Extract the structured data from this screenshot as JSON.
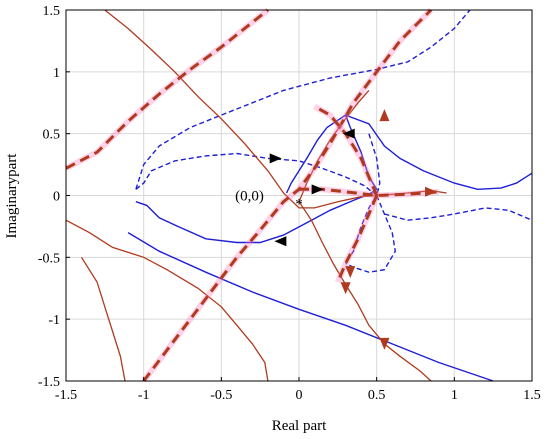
{
  "chart_data": {
    "type": "line",
    "title": "",
    "xlabel": "Real part",
    "ylabel": "Imaginarypart",
    "xlim": [
      -1.5,
      1.5
    ],
    "ylim": [
      -1.5,
      1.5
    ],
    "x_ticks": [
      "-1.5",
      "-1",
      "-0.5",
      "0",
      "0.5",
      "1",
      "1.5"
    ],
    "y_ticks": [
      "1.5",
      "1",
      "0.5",
      "0",
      "-0.5",
      "-1",
      "-1.5"
    ],
    "x_tick_values": [
      -1.5,
      -1,
      -0.5,
      0,
      0.5,
      1,
      1.5
    ],
    "y_tick_values": [
      1.5,
      1,
      0.5,
      0,
      -0.5,
      -1,
      -1.5
    ],
    "grid": true,
    "colors": {
      "blue": "#1f1fd6",
      "red": "#b03a1e",
      "dashred": "#b03a1e",
      "pink": "#ff7fbf"
    },
    "annotations": [
      {
        "text": "(0,0)",
        "x": -0.2,
        "y": 0.0
      },
      {
        "text": "*",
        "x": 0.0,
        "y": -0.01
      }
    ],
    "series": [
      {
        "style": "blue-solid",
        "points": [
          [
            -1.05,
            -0.05
          ],
          [
            -0.98,
            -0.08
          ],
          [
            -0.9,
            -0.18
          ],
          [
            -0.78,
            -0.25
          ],
          [
            -0.6,
            -0.35
          ],
          [
            -0.4,
            -0.38
          ],
          [
            -0.25,
            -0.38
          ],
          [
            -0.1,
            -0.32
          ],
          [
            0.05,
            -0.22
          ],
          [
            0.2,
            -0.12
          ],
          [
            0.35,
            -0.04
          ],
          [
            0.45,
            0.01
          ],
          [
            0.5,
            0.05
          ],
          [
            0.45,
            0.15
          ],
          [
            0.4,
            0.35
          ],
          [
            0.33,
            0.55
          ],
          [
            0.3,
            0.65
          ],
          [
            0.18,
            0.55
          ],
          [
            0.12,
            0.45
          ],
          [
            0.05,
            0.3
          ],
          [
            0.0,
            0.2
          ],
          [
            -0.05,
            0.1
          ],
          [
            -0.08,
            0.02
          ]
        ]
      },
      {
        "style": "blue-solid",
        "points": [
          [
            -1.1,
            -0.3
          ],
          [
            -0.9,
            -0.45
          ],
          [
            -0.6,
            -0.62
          ],
          [
            -0.3,
            -0.78
          ],
          [
            0.0,
            -0.92
          ],
          [
            0.3,
            -1.05
          ],
          [
            0.6,
            -1.2
          ],
          [
            0.9,
            -1.35
          ],
          [
            1.25,
            -1.5
          ]
        ]
      },
      {
        "style": "blue-solid",
        "points": [
          [
            0.3,
            0.65
          ],
          [
            0.45,
            0.58
          ],
          [
            0.55,
            0.4
          ],
          [
            0.65,
            0.3
          ],
          [
            0.8,
            0.2
          ],
          [
            1.0,
            0.1
          ],
          [
            1.15,
            0.05
          ],
          [
            1.3,
            0.06
          ],
          [
            1.4,
            0.1
          ],
          [
            1.5,
            0.18
          ]
        ]
      },
      {
        "style": "blue-dashed",
        "points": [
          [
            -1.05,
            0.05
          ],
          [
            -1.0,
            0.1
          ],
          [
            -0.95,
            0.2
          ],
          [
            -0.8,
            0.28
          ],
          [
            -0.6,
            0.32
          ],
          [
            -0.4,
            0.34
          ],
          [
            -0.2,
            0.3
          ],
          [
            0.0,
            0.28
          ],
          [
            0.15,
            0.22
          ],
          [
            0.3,
            0.15
          ],
          [
            0.42,
            0.08
          ],
          [
            0.5,
            0.0
          ],
          [
            0.45,
            -0.1
          ],
          [
            0.4,
            -0.25
          ],
          [
            0.35,
            -0.45
          ],
          [
            0.3,
            -0.55
          ]
        ]
      },
      {
        "style": "blue-dashed",
        "points": [
          [
            -1.05,
            0.05
          ],
          [
            -1.0,
            0.25
          ],
          [
            -0.9,
            0.4
          ],
          [
            -0.7,
            0.55
          ],
          [
            -0.5,
            0.65
          ],
          [
            -0.3,
            0.75
          ],
          [
            -0.1,
            0.85
          ],
          [
            0.2,
            0.95
          ],
          [
            0.5,
            1.02
          ],
          [
            0.7,
            1.08
          ],
          [
            0.85,
            1.2
          ],
          [
            1.0,
            1.35
          ],
          [
            1.1,
            1.5
          ]
        ]
      },
      {
        "style": "blue-dashed",
        "points": [
          [
            0.5,
            0.0
          ],
          [
            0.55,
            -0.15
          ],
          [
            0.6,
            -0.3
          ],
          [
            0.62,
            -0.45
          ],
          [
            0.55,
            -0.6
          ],
          [
            0.45,
            -0.62
          ],
          [
            0.35,
            -0.58
          ],
          [
            0.3,
            -0.55
          ]
        ]
      },
      {
        "style": "blue-dashed",
        "points": [
          [
            0.55,
            -0.15
          ],
          [
            0.7,
            -0.2
          ],
          [
            0.85,
            -0.18
          ],
          [
            1.0,
            -0.15
          ],
          [
            1.2,
            -0.1
          ],
          [
            1.35,
            -0.12
          ],
          [
            1.5,
            -0.2
          ]
        ]
      },
      {
        "style": "blue-dashed",
        "points": [
          [
            0.45,
            0.5
          ],
          [
            0.5,
            0.3
          ],
          [
            0.52,
            0.1
          ],
          [
            0.5,
            0.0
          ]
        ]
      },
      {
        "style": "red-solid",
        "points": [
          [
            -1.25,
            1.5
          ],
          [
            -1.1,
            1.35
          ],
          [
            -0.95,
            1.18
          ],
          [
            -0.8,
            1.0
          ],
          [
            -0.65,
            0.8
          ],
          [
            -0.5,
            0.62
          ],
          [
            -0.35,
            0.42
          ],
          [
            -0.2,
            0.2
          ],
          [
            -0.1,
            0.02
          ],
          [
            0.0,
            -0.1
          ],
          [
            0.1,
            -0.1
          ],
          [
            0.25,
            -0.05
          ],
          [
            0.4,
            -0.01
          ],
          [
            0.5,
            0.0
          ],
          [
            0.7,
            0.02
          ],
          [
            0.85,
            0.04
          ],
          [
            0.95,
            0.02
          ]
        ]
      },
      {
        "style": "red-solid",
        "points": [
          [
            -1.5,
            -0.2
          ],
          [
            -1.35,
            -0.3
          ],
          [
            -1.2,
            -0.42
          ],
          [
            -1.0,
            -0.5
          ],
          [
            -0.85,
            -0.6
          ],
          [
            -0.65,
            -0.75
          ],
          [
            -0.5,
            -0.9
          ],
          [
            -0.4,
            -1.05
          ],
          [
            -0.3,
            -1.2
          ],
          [
            -0.22,
            -1.35
          ],
          [
            -0.2,
            -1.5
          ]
        ]
      },
      {
        "style": "red-solid",
        "points": [
          [
            -1.4,
            -0.5
          ],
          [
            -1.3,
            -0.7
          ],
          [
            -1.25,
            -0.9
          ],
          [
            -1.2,
            -1.1
          ],
          [
            -1.15,
            -1.3
          ],
          [
            -1.12,
            -1.5
          ]
        ]
      },
      {
        "style": "red-solid",
        "points": [
          [
            0.0,
            -0.05
          ],
          [
            0.08,
            -0.2
          ],
          [
            0.15,
            -0.38
          ],
          [
            0.22,
            -0.55
          ],
          [
            0.3,
            -0.72
          ],
          [
            0.38,
            -0.88
          ],
          [
            0.45,
            -1.05
          ],
          [
            0.55,
            -1.2
          ],
          [
            0.65,
            -1.3
          ],
          [
            0.78,
            -1.42
          ],
          [
            0.85,
            -1.5
          ]
        ]
      },
      {
        "style": "red-solid",
        "points": [
          [
            0.0,
            -0.05
          ],
          [
            0.05,
            0.1
          ],
          [
            0.12,
            0.28
          ],
          [
            0.2,
            0.45
          ],
          [
            0.3,
            0.62
          ],
          [
            0.38,
            0.75
          ],
          [
            0.45,
            0.85
          ]
        ]
      },
      {
        "style": "red-dashed",
        "points": [
          [
            -1.5,
            0.22
          ],
          [
            -1.3,
            0.35
          ],
          [
            -1.1,
            0.6
          ],
          [
            -0.9,
            0.82
          ],
          [
            -0.7,
            1.02
          ],
          [
            -0.5,
            1.2
          ],
          [
            -0.35,
            1.35
          ],
          [
            -0.2,
            1.5
          ]
        ]
      },
      {
        "style": "red-dashed",
        "points": [
          [
            -1.0,
            -1.5
          ],
          [
            -0.85,
            -1.25
          ],
          [
            -0.7,
            -1.0
          ],
          [
            -0.55,
            -0.75
          ],
          [
            -0.4,
            -0.5
          ],
          [
            -0.25,
            -0.28
          ],
          [
            -0.1,
            -0.05
          ],
          [
            0.0,
            0.05
          ],
          [
            0.1,
            0.22
          ],
          [
            0.2,
            0.42
          ],
          [
            0.35,
            0.75
          ],
          [
            0.5,
            1.0
          ],
          [
            0.65,
            1.25
          ],
          [
            0.85,
            1.5
          ]
        ]
      },
      {
        "style": "red-dashed",
        "points": [
          [
            0.0,
            0.05
          ],
          [
            0.15,
            0.05
          ],
          [
            0.3,
            0.03
          ],
          [
            0.5,
            0.0
          ],
          [
            0.7,
            0.01
          ],
          [
            0.9,
            0.03
          ]
        ]
      },
      {
        "style": "red-dashed",
        "points": [
          [
            0.5,
            0.0
          ],
          [
            0.45,
            -0.15
          ],
          [
            0.38,
            -0.35
          ],
          [
            0.3,
            -0.55
          ],
          [
            0.25,
            -0.7
          ]
        ]
      },
      {
        "style": "red-dashed",
        "points": [
          [
            0.5,
            0.0
          ],
          [
            0.45,
            0.15
          ],
          [
            0.4,
            0.3
          ],
          [
            0.3,
            0.5
          ],
          [
            0.2,
            0.65
          ],
          [
            0.1,
            0.72
          ]
        ]
      }
    ],
    "arrows": [
      {
        "x": -0.15,
        "y": 0.3,
        "dir": "right",
        "color": "#000"
      },
      {
        "x": -0.12,
        "y": -0.37,
        "dir": "left",
        "color": "#000"
      },
      {
        "x": 0.12,
        "y": 0.05,
        "dir": "right",
        "color": "#000"
      },
      {
        "x": 0.32,
        "y": 0.5,
        "dir": "left",
        "color": "#000"
      },
      {
        "x": 0.55,
        "y": 0.65,
        "dir": "up",
        "color": "#b03a1e"
      },
      {
        "x": 0.85,
        "y": 0.03,
        "dir": "right",
        "color": "#b03a1e"
      },
      {
        "x": 0.33,
        "y": -0.62,
        "dir": "down",
        "color": "#b03a1e"
      },
      {
        "x": 0.55,
        "y": -1.2,
        "dir": "down",
        "color": "#b03a1e"
      },
      {
        "x": 0.3,
        "y": -0.75,
        "dir": "down",
        "color": "#b03a1e"
      }
    ]
  }
}
